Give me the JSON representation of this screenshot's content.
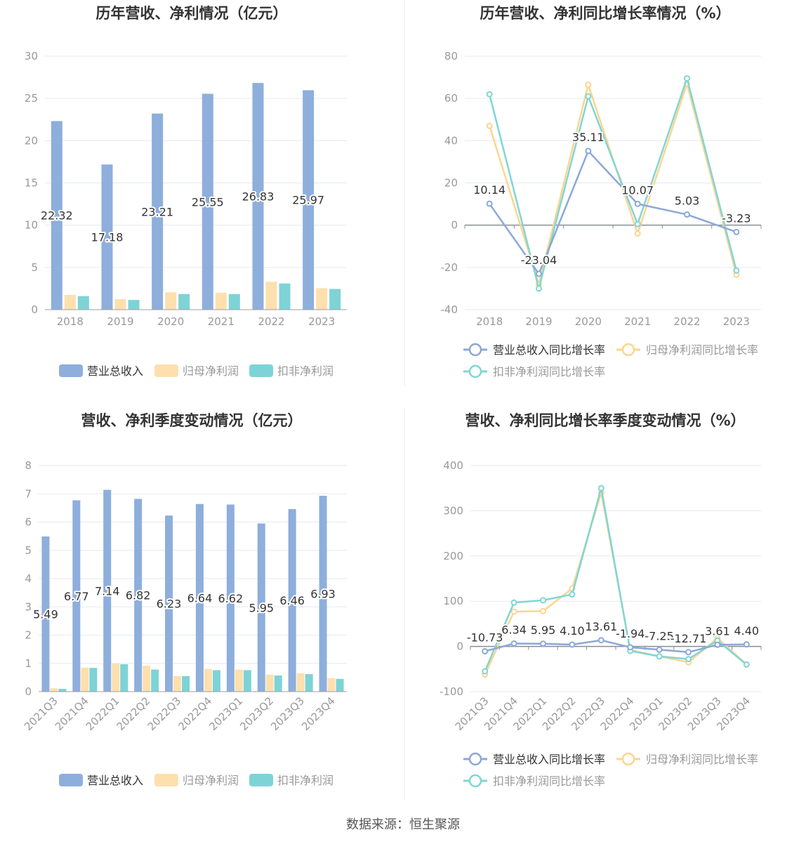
{
  "colors": {
    "revenue": "#8eaedc",
    "net_profit": "#fde0ad",
    "deducted_profit": "#7ed3d6",
    "revenue_line": "#8ba8d8",
    "net_profit_line": "#fdd58f",
    "deducted_profit_line": "#80d6d4",
    "grid": "#e6e9f2",
    "axis_text": "#999999",
    "title": "#333333"
  },
  "source_text": "数据来源：恒生聚源",
  "chart_data": [
    {
      "type": "bar",
      "title": "历年营收、净利情况（亿元）",
      "categories": [
        "2018",
        "2019",
        "2020",
        "2021",
        "2022",
        "2023"
      ],
      "ylim": [
        0,
        30
      ],
      "yticks": [
        0,
        5,
        10,
        15,
        20,
        25,
        30
      ],
      "grid": true,
      "legend_position": "bottom",
      "series": [
        {
          "name": "营业总收入",
          "values": [
            22.32,
            17.18,
            23.21,
            25.55,
            26.83,
            25.97
          ],
          "labels": [
            "22.32",
            "17.18",
            "23.21",
            "25.55",
            "26.83",
            "25.97"
          ]
        },
        {
          "name": "归母净利润",
          "values": [
            1.75,
            1.25,
            2.05,
            2.0,
            3.3,
            2.55
          ]
        },
        {
          "name": "扣非净利润",
          "values": [
            1.6,
            1.15,
            1.85,
            1.85,
            3.1,
            2.45
          ]
        }
      ]
    },
    {
      "type": "line",
      "title": "历年营收、净利同比增长率情况（%）",
      "categories": [
        "2018",
        "2019",
        "2020",
        "2021",
        "2022",
        "2023"
      ],
      "ylim": [
        -40,
        80
      ],
      "yticks": [
        -40,
        -20,
        0,
        20,
        40,
        60,
        80
      ],
      "grid": true,
      "legend_position": "bottom",
      "series": [
        {
          "name": "营业总收入同比增长率",
          "values": [
            10.14,
            -23.04,
            35.11,
            10.07,
            5.03,
            -3.23
          ],
          "labels": [
            "10.14",
            "-23.04",
            "35.11",
            "10.07",
            "5.03",
            "-3.23"
          ]
        },
        {
          "name": "归母净利润同比增长率",
          "values": [
            47,
            -28,
            66.5,
            -4,
            67,
            -23.5
          ]
        },
        {
          "name": "扣非净利润同比增长率",
          "values": [
            62,
            -30,
            61,
            0.5,
            69.5,
            -21.5
          ]
        }
      ]
    },
    {
      "type": "bar",
      "title": "营收、净利季度变动情况（亿元）",
      "categories": [
        "2021Q3",
        "2021Q4",
        "2022Q1",
        "2022Q2",
        "2022Q3",
        "2022Q4",
        "2023Q1",
        "2023Q2",
        "2023Q3",
        "2023Q4"
      ],
      "ylim": [
        0,
        8
      ],
      "yticks": [
        0,
        1,
        2,
        3,
        4,
        5,
        6,
        7,
        8
      ],
      "grid": true,
      "legend_position": "bottom",
      "series": [
        {
          "name": "营业总收入",
          "values": [
            5.49,
            6.77,
            7.14,
            6.82,
            6.23,
            6.64,
            6.62,
            5.95,
            6.46,
            6.93
          ],
          "labels": [
            "5.49",
            "6.77",
            "7.14",
            "6.82",
            "6.23",
            "6.64",
            "6.62",
            "5.95",
            "6.46",
            "6.93"
          ]
        },
        {
          "name": "归母净利润",
          "values": [
            0.12,
            0.85,
            1.0,
            0.92,
            0.55,
            0.8,
            0.78,
            0.6,
            0.65,
            0.48
          ]
        },
        {
          "name": "扣非净利润",
          "values": [
            0.1,
            0.84,
            0.97,
            0.78,
            0.55,
            0.76,
            0.76,
            0.57,
            0.62,
            0.45
          ]
        }
      ]
    },
    {
      "type": "line",
      "title": "营收、净利同比增长率季度变动情况（%）",
      "categories": [
        "2021Q3",
        "2021Q4",
        "2022Q1",
        "2022Q2",
        "2022Q3",
        "2022Q4",
        "2023Q1",
        "2023Q2",
        "2023Q3",
        "2023Q4"
      ],
      "ylim": [
        -100,
        400
      ],
      "yticks": [
        -100,
        0,
        100,
        200,
        300,
        400
      ],
      "grid": true,
      "legend_position": "bottom",
      "series": [
        {
          "name": "营业总收入同比增长率",
          "values": [
            -10.73,
            6.34,
            5.95,
            4.1,
            13.61,
            -1.94,
            -7.25,
            -12.71,
            3.61,
            4.4
          ],
          "labels": [
            "-10.73",
            "6.34",
            "5.95",
            "4.10",
            "13.61",
            "-1.94",
            "-7.25",
            "-12.71",
            "3.61",
            "4.40"
          ]
        },
        {
          "name": "归母净利润同比增长率",
          "values": [
            -62,
            77,
            78,
            128,
            340,
            -8,
            -22,
            -35,
            18,
            -40
          ]
        },
        {
          "name": "扣非净利润同比增长率",
          "values": [
            -55,
            97,
            102,
            115,
            350,
            -10,
            -22,
            -28,
            13,
            -40
          ]
        }
      ]
    }
  ]
}
